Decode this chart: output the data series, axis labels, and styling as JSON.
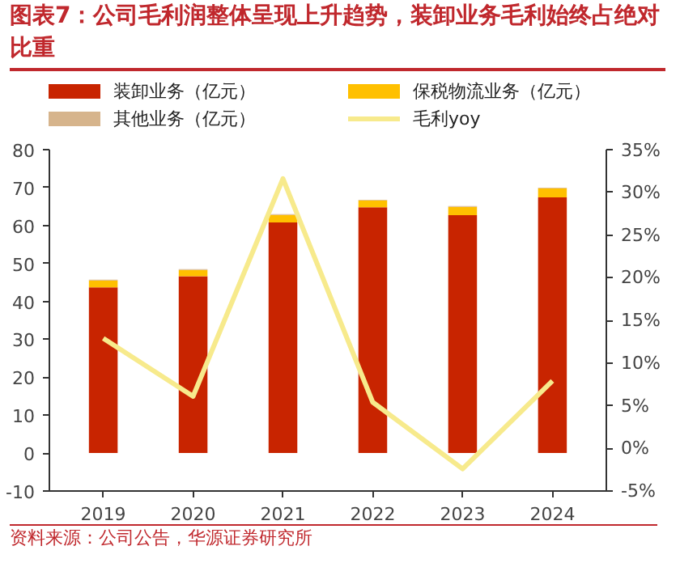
{
  "chart_data": {
    "type": "bar",
    "title": "图表7：公司毛利润整体呈现上升趋势，装卸业务毛利始终占绝对比重",
    "categories": [
      "2019",
      "2020",
      "2021",
      "2022",
      "2023",
      "2024"
    ],
    "stacked": true,
    "series": [
      {
        "name": "装卸业务（亿元）",
        "color": "#c82400",
        "values": [
          43.7,
          46.6,
          60.8,
          64.8,
          62.7,
          67.4
        ]
      },
      {
        "name": "保税物流业务（亿元）",
        "color": "#ffc000",
        "values": [
          1.8,
          1.7,
          2.0,
          1.8,
          2.2,
          2.4
        ]
      },
      {
        "name": "其他业务（亿元）",
        "color": "#d6b48c",
        "values": [
          0.2,
          0.2,
          0.2,
          0.2,
          0.2,
          0.2
        ]
      },
      {
        "name": "毛利yoy",
        "color": "#f7ea8c",
        "type": "line",
        "axis": "y2",
        "values": [
          12.9,
          6.1,
          31.6,
          5.4,
          -2.4,
          7.9
        ]
      }
    ],
    "ylim": [
      -10,
      80
    ],
    "yticks": [
      -10,
      0,
      10,
      20,
      30,
      40,
      50,
      60,
      70,
      80
    ],
    "y2lim": [
      -5,
      35
    ],
    "y2ticks": [
      {
        "value": -5,
        "label": "-5%"
      },
      {
        "value": 0,
        "label": "0%"
      },
      {
        "value": 5,
        "label": "5%"
      },
      {
        "value": 10,
        "label": "10%"
      },
      {
        "value": 15,
        "label": "15%"
      },
      {
        "value": 20,
        "label": "20%"
      },
      {
        "value": 25,
        "label": "25%"
      },
      {
        "value": 30,
        "label": "30%"
      },
      {
        "value": 35,
        "label": "35%"
      }
    ],
    "grid": false,
    "legend": "top",
    "annotations": [
      "资料来源：公司公告，华源证券研究所"
    ]
  }
}
